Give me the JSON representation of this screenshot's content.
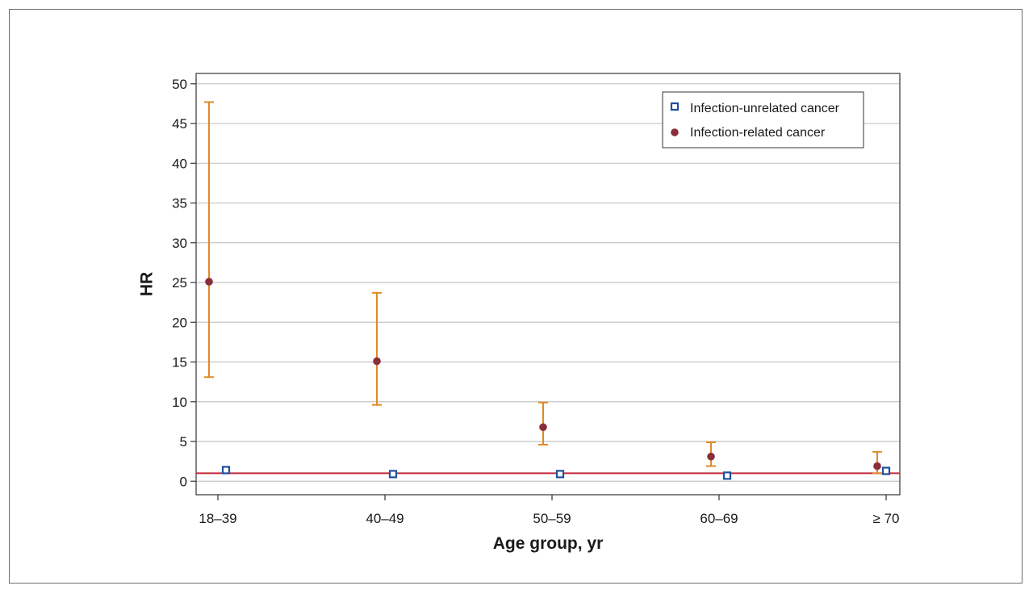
{
  "chart_data": {
    "type": "scatter",
    "xlabel": "Age group, yr",
    "ylabel": "HR",
    "categories": [
      "18–39",
      "40–49",
      "50–59",
      "60–69",
      "≥ 70"
    ],
    "ylim": [
      -1.7,
      51.3
    ],
    "yticks": [
      0,
      5,
      10,
      15,
      20,
      25,
      30,
      35,
      40,
      45,
      50
    ],
    "grid": "horizontal",
    "legend_position": "top-right",
    "reference_line": {
      "y": 1,
      "color": "#c0283c"
    },
    "series": [
      {
        "name": "Infection-unrelated cancer",
        "marker": "square",
        "color": "#1f4e9e",
        "ci_color": "#b8cc3a",
        "values": [
          1.4,
          0.9,
          0.9,
          0.7,
          1.3
        ],
        "ci_low": [
          1.1,
          0.7,
          0.7,
          0.5,
          1.0
        ],
        "ci_high": [
          1.8,
          1.1,
          1.1,
          0.9,
          1.6
        ]
      },
      {
        "name": "Infection-related cancer",
        "marker": "circle",
        "color": "#8b2e3c",
        "ci_color": "#e08a25",
        "values": [
          25.1,
          15.1,
          6.8,
          3.1,
          1.9
        ],
        "ci_low": [
          13.1,
          9.6,
          4.6,
          1.9,
          1.0
        ],
        "ci_high": [
          47.7,
          23.7,
          9.9,
          4.9,
          3.7
        ]
      }
    ]
  }
}
